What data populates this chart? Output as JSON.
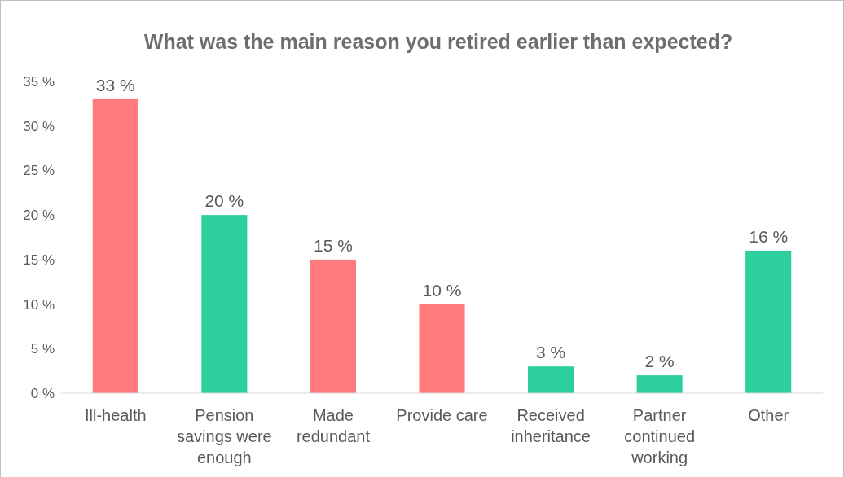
{
  "chart_data": {
    "type": "bar",
    "title": "What was the main reason you retired earlier than expected?",
    "categories": [
      "Ill-health",
      "Pension savings were enough",
      "Made redundant",
      "Provide care",
      "Received inheritance",
      "Partner continued working",
      "Other"
    ],
    "values": [
      33,
      20,
      15,
      10,
      3,
      2,
      16
    ],
    "colors": [
      "#ff7b7b",
      "#2ecf9f",
      "#ff7b7b",
      "#ff7b7b",
      "#2ecf9f",
      "#2ecf9f",
      "#2ecf9f"
    ],
    "value_labels": [
      "33 %",
      "20 %",
      "15 %",
      "10 %",
      "3 %",
      "2 %",
      "16 %"
    ],
    "ylim": [
      0,
      35
    ],
    "yticks": [
      {
        "value": 0,
        "label": "0 %"
      },
      {
        "value": 5,
        "label": "5 %"
      },
      {
        "value": 10,
        "label": "10 %"
      },
      {
        "value": 15,
        "label": "15 %"
      },
      {
        "value": 20,
        "label": "20 %"
      },
      {
        "value": 25,
        "label": "25 %"
      },
      {
        "value": 30,
        "label": "30 %"
      },
      {
        "value": 35,
        "label": "35 %"
      }
    ],
    "grid": false
  }
}
